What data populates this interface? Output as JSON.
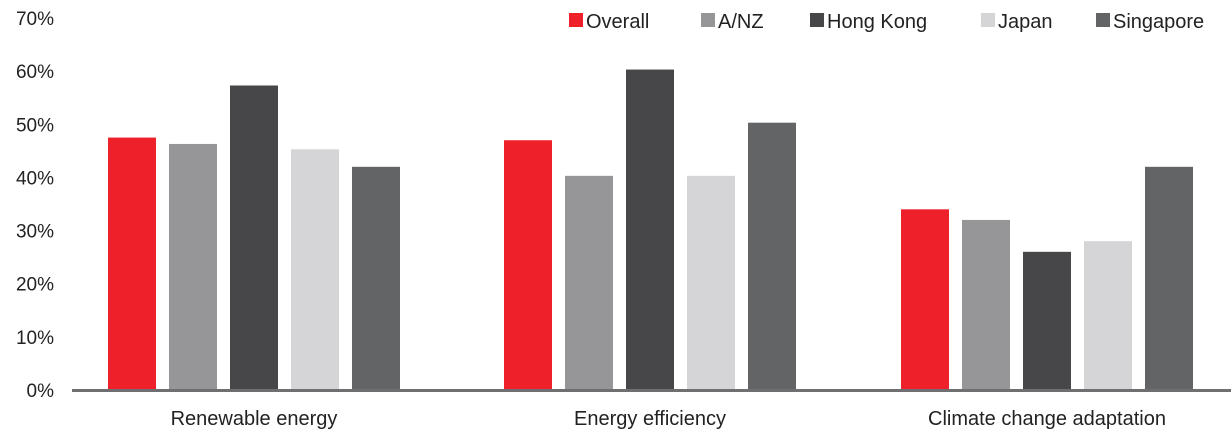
{
  "chart_data": {
    "type": "bar",
    "title": "",
    "xlabel": "",
    "ylabel": "",
    "ylim": [
      0,
      70
    ],
    "y_ticks": [
      0,
      10,
      20,
      30,
      40,
      50,
      60,
      70
    ],
    "y_tick_format": "{v}%",
    "grid": false,
    "legend_position": "top-right",
    "categories": [
      "Renewable energy",
      "Energy efficiency",
      "Climate change adaptation"
    ],
    "series": [
      {
        "name": "Overall",
        "color": "#ee2029",
        "values": [
          47.5,
          47,
          34
        ]
      },
      {
        "name": "A/NZ",
        "color": "#969698",
        "values": [
          46.3,
          40.3,
          32
        ]
      },
      {
        "name": "Hong Kong",
        "color": "#474749",
        "values": [
          57.3,
          60.3,
          26
        ]
      },
      {
        "name": "Japan",
        "color": "#d5d5d7",
        "values": [
          45.3,
          40.3,
          28
        ]
      },
      {
        "name": "Singapore",
        "color": "#636466",
        "values": [
          42,
          50.3,
          42
        ]
      }
    ]
  }
}
